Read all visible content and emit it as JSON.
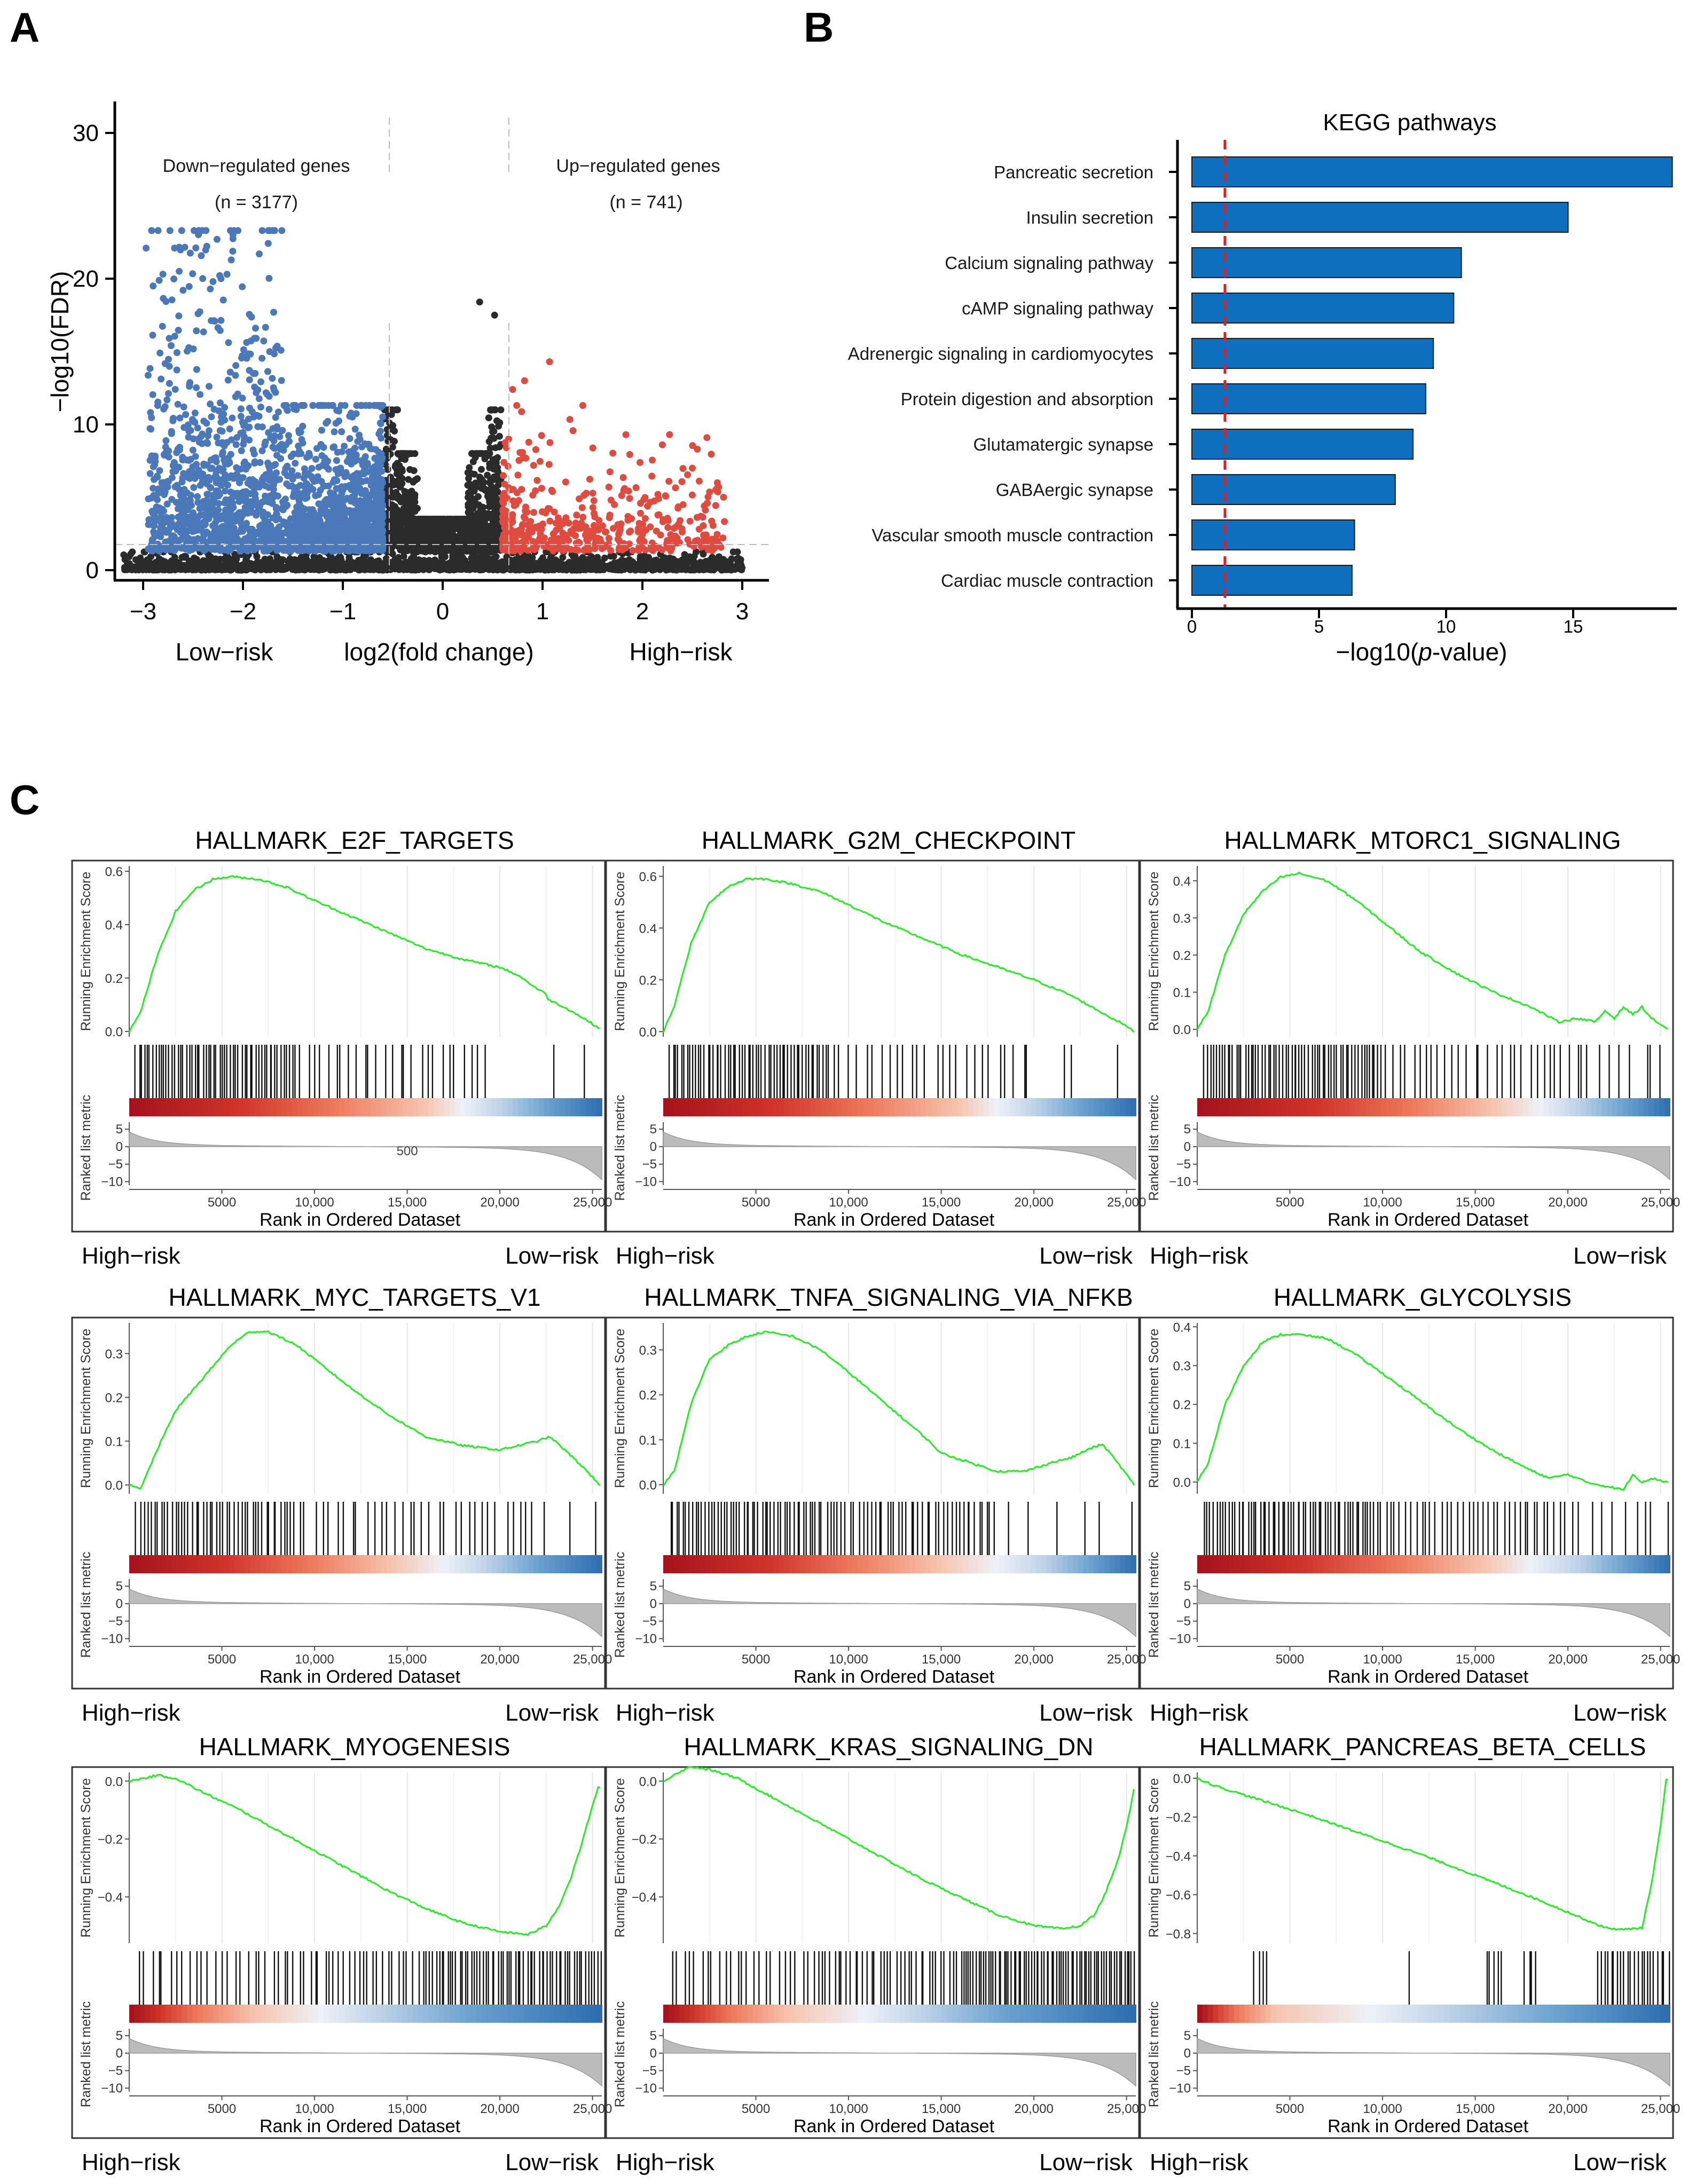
{
  "panel_labels": [
    "A",
    "B",
    "C"
  ],
  "colors": {
    "down": "#4A78B8",
    "up": "#E04B3F",
    "ns": "#2B2B2B",
    "kegg_bar": "#0E6FBE",
    "threshold": "#E02020",
    "es_curve": "#22EE22",
    "heat": [
      "#A6131C",
      "#D0342A",
      "#EE7A5C",
      "#F7C4AE",
      "#EEF1F8",
      "#BFD3E8",
      "#6AA1D0",
      "#2B6CAF"
    ]
  },
  "chart_data": [
    {
      "type": "scatter",
      "name": "volcano",
      "xlabel": "log2(fold change)",
      "ylabel": "−log10(FDR)",
      "x_ticks": [
        "−3",
        "−2",
        "−1",
        "0",
        "1",
        "2",
        "3"
      ],
      "x_tick_values": [
        -3,
        -2,
        -1,
        0,
        1,
        2,
        3
      ],
      "y_ticks": [
        "0",
        "10",
        "20",
        "30"
      ],
      "y_tick_values": [
        0,
        10,
        20,
        30
      ],
      "xlim": [
        -3.3,
        3.1
      ],
      "ylim": [
        -1,
        31
      ],
      "fc_thresholds": [
        -0.585,
        0.585
      ],
      "fdr_threshold": 1.3,
      "labels": {
        "down": "Down−regulated genes",
        "down_n": "(n = 3177)",
        "up": "Up−regulated genes",
        "up_n": "(n = 741)",
        "low": "Low−risk",
        "high": "High−risk"
      },
      "groups": {
        "down_count": 3177,
        "up_count": 741
      }
    },
    {
      "type": "bar",
      "name": "kegg",
      "title": "KEGG pathways",
      "xlabel_prefix": "−log10(",
      "xlabel_italic": "p",
      "xlabel_suffix": "-value)",
      "categories": [
        "Pancreatic secretion",
        "Insulin secretion",
        "Calcium signaling pathway",
        "cAMP signaling pathway",
        "Adrenergic signaling in cardiomyocytes",
        "Protein digestion and absorption",
        "Glutamatergic synapse",
        "GABAergic synapse",
        "Vascular smooth muscle contraction",
        "Cardiac muscle contraction"
      ],
      "values": [
        18.9,
        14.8,
        10.6,
        10.3,
        9.5,
        9.2,
        8.7,
        8.0,
        6.4,
        6.3
      ],
      "threshold": 1.3,
      "x_ticks": [
        "0",
        "5",
        "10",
        "15"
      ],
      "x_tick_values": [
        0,
        5,
        10,
        15
      ],
      "xlim": [
        0,
        19
      ]
    },
    {
      "type": "line",
      "name": "gsea",
      "ylabel_es": "Running Enrichment Score",
      "ylabel_rank": "Ranked list metric",
      "xlabel": "Rank in Ordered Dataset",
      "x_ticks": [
        "5000",
        "10,000",
        "15,000",
        "20,000",
        "25,000"
      ],
      "x_tick_values": [
        5000,
        10000,
        15000,
        20000,
        25000
      ],
      "rank_ticks": [
        "5",
        "0",
        "−5",
        "−10"
      ],
      "rank_tick_values": [
        5,
        0,
        -5,
        -10
      ],
      "xlim": [
        0,
        25500
      ],
      "left_label": "High−risk",
      "right_label": "Low−risk",
      "annotation": "500",
      "panels": [
        {
          "title": "HALLMARK_E2F_TARGETS",
          "ylim": [
            -0.02,
            0.62
          ],
          "ticks": [
            0,
            0.2,
            0.4,
            0.6
          ],
          "tick_labels": [
            "0.0",
            "0.2",
            "0.4",
            "0.6"
          ],
          "x": [
            0,
            600,
            1500,
            2500,
            3500,
            4500,
            5500,
            7000,
            8500,
            10000,
            12000,
            14000,
            16000,
            18000,
            20000,
            21000,
            22000,
            22500,
            22600,
            23500,
            24500,
            25400
          ],
          "y": [
            0.0,
            0.07,
            0.28,
            0.45,
            0.53,
            0.57,
            0.58,
            0.57,
            0.54,
            0.49,
            0.43,
            0.37,
            0.31,
            0.27,
            0.24,
            0.21,
            0.16,
            0.14,
            0.12,
            0.09,
            0.05,
            0.01
          ],
          "hits": [
            [
              300,
              9000,
              58
            ],
            [
              9000,
              19000,
              26
            ],
            [
              19000,
              25500,
              3
            ]
          ],
          "heat": [
            0.23,
            0.43,
            0.62,
            0.7,
            0.78,
            0.88,
            1.0
          ]
        },
        {
          "title": "HALLMARK_G2M_CHECKPOINT",
          "ylim": [
            -0.02,
            0.64
          ],
          "ticks": [
            0,
            0.2,
            0.4,
            0.6
          ],
          "tick_labels": [
            "0.0",
            "0.2",
            "0.4",
            "0.6"
          ],
          "x": [
            0,
            600,
            1500,
            2500,
            3500,
            4500,
            5500,
            7000,
            8500,
            10000,
            12000,
            14000,
            16000,
            18000,
            20000,
            21000,
            22000,
            23000,
            24000,
            24800,
            25400
          ],
          "y": [
            0.0,
            0.1,
            0.34,
            0.5,
            0.56,
            0.59,
            0.59,
            0.57,
            0.54,
            0.49,
            0.42,
            0.36,
            0.3,
            0.25,
            0.2,
            0.17,
            0.14,
            0.1,
            0.06,
            0.03,
            0.0
          ],
          "hits": [
            [
              300,
              9000,
              56
            ],
            [
              9000,
              20000,
              26
            ],
            [
              20000,
              25500,
              3
            ]
          ],
          "heat": [
            0.23,
            0.43,
            0.62,
            0.7,
            0.78,
            0.88,
            1.0
          ]
        },
        {
          "title": "HALLMARK_MTORC1_SIGNALING",
          "ylim": [
            -0.02,
            0.44
          ],
          "ticks": [
            0,
            0.1,
            0.2,
            0.3,
            0.4
          ],
          "tick_labels": [
            "0.0",
            "0.1",
            "0.2",
            "0.3",
            "0.4"
          ],
          "x": [
            0,
            600,
            1500,
            2500,
            3500,
            4500,
            5500,
            7000,
            8500,
            10000,
            12000,
            14000,
            16000,
            18000,
            19500,
            20500,
            21500,
            22000,
            22500,
            23000,
            23500,
            24000,
            24500,
            25400
          ],
          "y": [
            0.0,
            0.05,
            0.2,
            0.31,
            0.37,
            0.41,
            0.42,
            0.4,
            0.35,
            0.29,
            0.21,
            0.15,
            0.1,
            0.06,
            0.02,
            0.03,
            0.02,
            0.05,
            0.03,
            0.06,
            0.04,
            0.06,
            0.03,
            0.0
          ],
          "hits": [
            [
              300,
              10000,
              62
            ],
            [
              10000,
              21000,
              30
            ],
            [
              21000,
              25500,
              8
            ]
          ],
          "heat": [
            0.25,
            0.45,
            0.62,
            0.72,
            0.8,
            0.9,
            1.0
          ]
        },
        {
          "title": "HALLMARK_MYC_TARGETS_V1",
          "ylim": [
            -0.02,
            0.37
          ],
          "ticks": [
            0,
            0.1,
            0.2,
            0.3
          ],
          "tick_labels": [
            "0.0",
            "0.1",
            "0.2",
            "0.3"
          ],
          "x": [
            0,
            600,
            1500,
            2500,
            3500,
            4500,
            5500,
            6500,
            7500,
            9000,
            10500,
            12000,
            14000,
            16000,
            18000,
            20000,
            21000,
            22000,
            22700,
            23500,
            24500,
            25400
          ],
          "y": [
            0.0,
            -0.01,
            0.08,
            0.17,
            0.22,
            0.27,
            0.32,
            0.35,
            0.35,
            0.32,
            0.27,
            0.22,
            0.16,
            0.11,
            0.09,
            0.08,
            0.09,
            0.1,
            0.11,
            0.08,
            0.04,
            0.0
          ],
          "hits": [
            [
              300,
              9000,
              46
            ],
            [
              9000,
              22500,
              34
            ],
            [
              22500,
              25500,
              2
            ]
          ],
          "heat": [
            0.2,
            0.38,
            0.55,
            0.66,
            0.75,
            0.86,
            1.0
          ]
        },
        {
          "title": "HALLMARK_TNFA_SIGNALING_VIA_NFKB",
          "ylim": [
            -0.02,
            0.36
          ],
          "ticks": [
            0,
            0.1,
            0.2,
            0.3
          ],
          "tick_labels": [
            "0.0",
            "0.1",
            "0.2",
            "0.3"
          ],
          "x": [
            0,
            600,
            1500,
            2500,
            3500,
            4500,
            5500,
            7000,
            8500,
            10000,
            12000,
            14000,
            15000,
            16500,
            18000,
            19500,
            21000,
            22000,
            23000,
            23700,
            24500,
            25400
          ],
          "y": [
            0.0,
            0.03,
            0.18,
            0.28,
            0.31,
            0.33,
            0.34,
            0.33,
            0.3,
            0.25,
            0.18,
            0.11,
            0.07,
            0.05,
            0.03,
            0.03,
            0.05,
            0.06,
            0.08,
            0.09,
            0.05,
            0.0
          ],
          "hits": [
            [
              300,
              8500,
              48
            ],
            [
              8500,
              18000,
              44
            ],
            [
              18000,
              25500,
              6
            ]
          ],
          "heat": [
            0.22,
            0.4,
            0.58,
            0.7,
            0.8,
            0.9,
            1.0
          ]
        },
        {
          "title": "HALLMARK_GLYCOLYSIS",
          "ylim": [
            -0.03,
            0.41
          ],
          "ticks": [
            0,
            0.1,
            0.2,
            0.3,
            0.4
          ],
          "tick_labels": [
            "0.0",
            "0.1",
            "0.2",
            "0.3",
            "0.4"
          ],
          "x": [
            0,
            600,
            1500,
            2500,
            3500,
            4500,
            5500,
            7000,
            8500,
            10000,
            12000,
            14000,
            16000,
            18000,
            19000,
            20000,
            21000,
            22000,
            23000,
            23500,
            24000,
            24500,
            25400
          ],
          "y": [
            0.0,
            0.05,
            0.2,
            0.3,
            0.36,
            0.38,
            0.38,
            0.37,
            0.33,
            0.28,
            0.21,
            0.14,
            0.08,
            0.03,
            0.01,
            0.02,
            0.0,
            -0.01,
            -0.02,
            0.02,
            0.0,
            0.01,
            0.0
          ],
          "hits": [
            [
              300,
              10000,
              58
            ],
            [
              10000,
              20000,
              36
            ],
            [
              20000,
              25500,
              10
            ]
          ],
          "heat": [
            0.22,
            0.42,
            0.6,
            0.7,
            0.8,
            0.9,
            1.0
          ]
        },
        {
          "title": "HALLMARK_MYOGENESIS",
          "ylim": [
            -0.56,
            0.03
          ],
          "ticks": [
            0,
            -0.2,
            -0.4
          ],
          "tick_labels": [
            "0.0",
            "−0.2",
            "−0.4"
          ],
          "x": [
            0,
            800,
            1500,
            2500,
            4000,
            6000,
            8000,
            10000,
            12000,
            14000,
            16000,
            18000,
            20000,
            21500,
            22500,
            23200,
            23800,
            24300,
            24800,
            25300
          ],
          "y": [
            0.0,
            0.01,
            0.02,
            0.01,
            -0.04,
            -0.1,
            -0.17,
            -0.24,
            -0.31,
            -0.38,
            -0.44,
            -0.49,
            -0.52,
            -0.53,
            -0.5,
            -0.43,
            -0.34,
            -0.24,
            -0.13,
            -0.02
          ],
          "hits": [
            [
              300,
              8000,
              22
            ],
            [
              8000,
              16000,
              30
            ],
            [
              16000,
              25500,
              60
            ]
          ],
          "heat": [
            0.06,
            0.14,
            0.26,
            0.4,
            0.52,
            0.72,
            1.0
          ]
        },
        {
          "title": "HALLMARK_KRAS_SIGNALING_DN",
          "ylim": [
            -0.56,
            0.03
          ],
          "ticks": [
            0,
            -0.2,
            -0.4
          ],
          "tick_labels": [
            "0.0",
            "−0.2",
            "−0.4"
          ],
          "x": [
            0,
            800,
            1500,
            2500,
            4000,
            6000,
            8000,
            10000,
            12000,
            14000,
            16000,
            18000,
            20000,
            21500,
            22500,
            23300,
            23900,
            24500,
            25000,
            25400
          ],
          "y": [
            0.0,
            0.03,
            0.05,
            0.04,
            0.01,
            -0.06,
            -0.13,
            -0.2,
            -0.27,
            -0.34,
            -0.4,
            -0.46,
            -0.5,
            -0.51,
            -0.5,
            -0.46,
            -0.38,
            -0.28,
            -0.16,
            -0.03
          ],
          "hits": [
            [
              300,
              8000,
              24
            ],
            [
              8000,
              16000,
              36
            ],
            [
              16000,
              25500,
              70
            ]
          ],
          "heat": [
            0.06,
            0.14,
            0.26,
            0.42,
            0.54,
            0.72,
            1.0
          ]
        },
        {
          "title": "HALLMARK_PANCREAS_BETA_CELLS",
          "ylim": [
            -0.85,
            0.03
          ],
          "ticks": [
            0,
            -0.2,
            -0.4,
            -0.6,
            -0.8
          ],
          "tick_labels": [
            "0.0",
            "−0.2",
            "−0.4",
            "−0.6",
            "−0.8"
          ],
          "x": [
            0,
            1000,
            3000,
            6000,
            9000,
            12000,
            15000,
            18000,
            20000,
            22000,
            23000,
            24000,
            24500,
            25000,
            25300
          ],
          "y": [
            0.0,
            -0.04,
            -0.1,
            -0.19,
            -0.29,
            -0.39,
            -0.5,
            -0.61,
            -0.69,
            -0.77,
            -0.78,
            -0.77,
            -0.55,
            -0.25,
            -0.01
          ],
          "hits": [
            [
              3000,
              3800,
              4
            ],
            [
              11000,
              11500,
              1
            ],
            [
              15500,
              16500,
              5
            ],
            [
              17500,
              18500,
              4
            ],
            [
              21500,
              25500,
              22
            ]
          ],
          "heat": [
            0.03,
            0.08,
            0.16,
            0.36,
            0.52,
            0.76,
            1.0
          ]
        }
      ]
    }
  ]
}
